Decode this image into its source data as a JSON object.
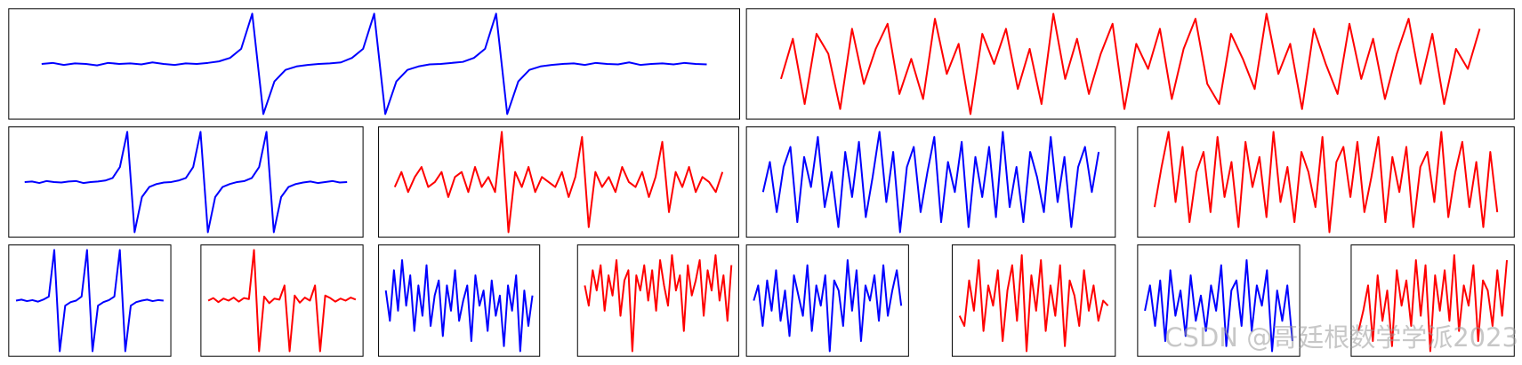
{
  "chart_data": [
    {
      "type": "line",
      "color": "#0000ff",
      "ylim": [
        -11,
        11
      ],
      "values": [
        0,
        0.2,
        -0.2,
        0.1,
        0,
        -0.3,
        0.2,
        0,
        0.1,
        -0.1,
        0.3,
        0,
        -0.2,
        0.1,
        0,
        0.2,
        0.5,
        1.2,
        3,
        10,
        -10,
        -3.5,
        -1.2,
        -0.5,
        -0.2,
        0,
        0.1,
        0.3,
        1.2,
        3,
        10,
        -10,
        -3.5,
        -1.2,
        -0.5,
        -0.1,
        0,
        0.2,
        0.4,
        1.2,
        3,
        10,
        -10,
        -3.5,
        -1.2,
        -0.5,
        -0.2,
        0,
        0.1,
        -0.2,
        0.2,
        0,
        -0.1,
        0.3,
        -0.2,
        0,
        0.1,
        -0.1,
        0.2,
        0,
        -0.1
      ]
    },
    {
      "type": "line",
      "color": "#ff0000",
      "ylim": [
        -11,
        11
      ],
      "values": [
        -3,
        5,
        -8,
        6,
        2,
        -9,
        7,
        -4,
        3,
        8,
        -6,
        1,
        -7,
        9,
        -2,
        4,
        -10,
        6,
        0,
        7,
        -5,
        3,
        -8,
        10,
        -3,
        5,
        -6,
        2,
        8,
        -9,
        4,
        -1,
        7,
        -7,
        3,
        9,
        -4,
        -8,
        6,
        1,
        -5,
        10,
        -2,
        4,
        -9,
        7,
        0,
        -6,
        8,
        -3,
        5,
        -7,
        2,
        9,
        -4,
        6,
        -8,
        3,
        -1,
        7
      ]
    },
    {
      "type": "line",
      "color": "#0000ff",
      "ylim": [
        -11,
        11
      ],
      "values": [
        0,
        0.1,
        -0.2,
        0.2,
        0,
        -0.1,
        0.1,
        0.2,
        -0.2,
        0,
        0.1,
        0.3,
        0.8,
        3,
        10,
        -10,
        -3,
        -1,
        -0.4,
        -0.1,
        0,
        0.3,
        0.8,
        3,
        10,
        -10,
        -3,
        -1,
        -0.4,
        0,
        0.2,
        0.8,
        3,
        10,
        -10,
        -3,
        -1,
        -0.4,
        -0.1,
        0.1,
        -0.2,
        0,
        0.2,
        -0.1,
        0
      ]
    },
    {
      "type": "line",
      "color": "#ff0000",
      "ylim": [
        -11,
        11
      ],
      "values": [
        -1,
        2,
        -2,
        1,
        3,
        -1,
        0,
        2,
        -3,
        1,
        2,
        -2,
        3,
        -1,
        1,
        -2,
        10,
        -10,
        2,
        -1,
        3,
        -2,
        1,
        0,
        -1,
        2,
        -3,
        1,
        9,
        -9,
        2,
        -1,
        1,
        -2,
        3,
        0,
        -1,
        2,
        -3,
        1,
        8,
        -6,
        2,
        -1,
        3,
        -2,
        1,
        0,
        -2,
        2
      ]
    },
    {
      "type": "line",
      "color": "#0000ff",
      "ylim": [
        -11,
        11
      ],
      "values": [
        -2,
        4,
        -6,
        3,
        7,
        -8,
        5,
        -1,
        9,
        -5,
        2,
        -9,
        6,
        -3,
        8,
        -7,
        1,
        10,
        -4,
        6,
        -10,
        3,
        7,
        -6,
        2,
        9,
        -8,
        4,
        -2,
        8,
        -9,
        5,
        -3,
        7,
        -7,
        10,
        -5,
        3,
        -8,
        6,
        1,
        -6,
        9,
        -4,
        5,
        -9,
        3,
        7,
        -2,
        6
      ]
    },
    {
      "type": "line",
      "color": "#ff0000",
      "ylim": [
        -11,
        11
      ],
      "values": [
        -5,
        3,
        10,
        -4,
        7,
        -8,
        2,
        6,
        -6,
        9,
        -3,
        4,
        -9,
        8,
        -1,
        5,
        -7,
        10,
        -4,
        3,
        -8,
        6,
        2,
        -5,
        9,
        -10,
        4,
        7,
        -3,
        8,
        -6,
        1,
        9,
        -8,
        5,
        -2,
        7,
        -9,
        3,
        6,
        -4,
        10,
        -7,
        2,
        8,
        -5,
        4,
        -9,
        6,
        -6
      ]
    },
    {
      "type": "line",
      "color": "#0000ff",
      "ylim": [
        -11,
        11
      ],
      "values": [
        0,
        0.2,
        -0.1,
        0.1,
        -0.2,
        0.2,
        0.8,
        10,
        -10,
        -1,
        -0.3,
        0,
        0.8,
        10,
        -10,
        -1,
        -0.3,
        0.1,
        0.8,
        10,
        -10,
        -1,
        -0.3,
        0,
        0.2,
        -0.1,
        0.1,
        0
      ]
    },
    {
      "type": "line",
      "color": "#ff0000",
      "ylim": [
        -11,
        11
      ],
      "values": [
        0,
        0.5,
        -0.3,
        0.4,
        0,
        0.6,
        -0.2,
        0.5,
        0.3,
        10,
        -10,
        0.8,
        -0.5,
        0.4,
        0.2,
        3,
        -10,
        1,
        -0.4,
        0.6,
        0,
        3,
        -10,
        1,
        0.5,
        -0.2,
        0.4,
        0,
        0.6,
        0.2
      ]
    },
    {
      "type": "line",
      "color": "#0000ff",
      "ylim": [
        -11,
        11
      ],
      "values": [
        2,
        -4,
        6,
        -2,
        8,
        -1,
        5,
        -6,
        3,
        -3,
        7,
        -5,
        1,
        4,
        -7,
        3,
        -2,
        6,
        -4,
        0,
        3,
        -8,
        5,
        -1,
        2,
        -6,
        4,
        -3,
        1,
        -9,
        3,
        -2,
        5,
        -10,
        2,
        -5,
        1
      ]
    },
    {
      "type": "line",
      "color": "#ff0000",
      "ylim": [
        -11,
        11
      ],
      "values": [
        3,
        -1,
        6,
        2,
        7,
        -2,
        5,
        1,
        8,
        -3,
        4,
        6,
        -10,
        5,
        2,
        7,
        0,
        6,
        -2,
        8,
        3,
        -1,
        9,
        2,
        5,
        -6,
        7,
        1,
        4,
        8,
        -3,
        6,
        2,
        9,
        0,
        5,
        -4,
        7
      ]
    },
    {
      "type": "line",
      "color": "#0000ff",
      "ylim": [
        -11,
        11
      ],
      "values": [
        0,
        3,
        -5,
        4,
        -2,
        6,
        -4,
        2,
        -7,
        5,
        1,
        -3,
        7,
        -6,
        3,
        -1,
        5,
        -10,
        4,
        2,
        -5,
        8,
        -2,
        6,
        -8,
        3,
        0,
        5,
        -4,
        7,
        -3,
        2,
        6,
        -1
      ]
    },
    {
      "type": "line",
      "color": "#ff0000",
      "ylim": [
        -11,
        11
      ],
      "values": [
        -3,
        -5,
        4,
        -2,
        8,
        -6,
        3,
        -1,
        6,
        -8,
        2,
        7,
        -4,
        9,
        -10,
        5,
        -2,
        8,
        -6,
        3,
        -3,
        7,
        -9,
        4,
        1,
        -5,
        6,
        -2,
        3,
        -4,
        0,
        -1
      ]
    },
    {
      "type": "line",
      "color": "#0000ff",
      "ylim": [
        -11,
        11
      ],
      "values": [
        -2,
        3,
        -5,
        4,
        -8,
        6,
        -3,
        2,
        -7,
        5,
        -4,
        1,
        -6,
        3,
        -2,
        7,
        -9,
        2,
        4,
        -5,
        8,
        -6,
        3,
        -1,
        6,
        -10,
        2,
        -4,
        3,
        -8
      ]
    },
    {
      "type": "line",
      "color": "#ff0000",
      "ylim": [
        -11,
        11
      ],
      "values": [
        -6,
        -2,
        3,
        -8,
        5,
        -4,
        2,
        -9,
        6,
        -1,
        4,
        -5,
        8,
        -3,
        7,
        -10,
        5,
        -2,
        6,
        -4,
        9,
        -6,
        3,
        -1,
        7,
        -8,
        4,
        2,
        -5,
        6,
        -3,
        8
      ]
    }
  ],
  "watermark": "CSDN @哥廷根数学学派2023"
}
